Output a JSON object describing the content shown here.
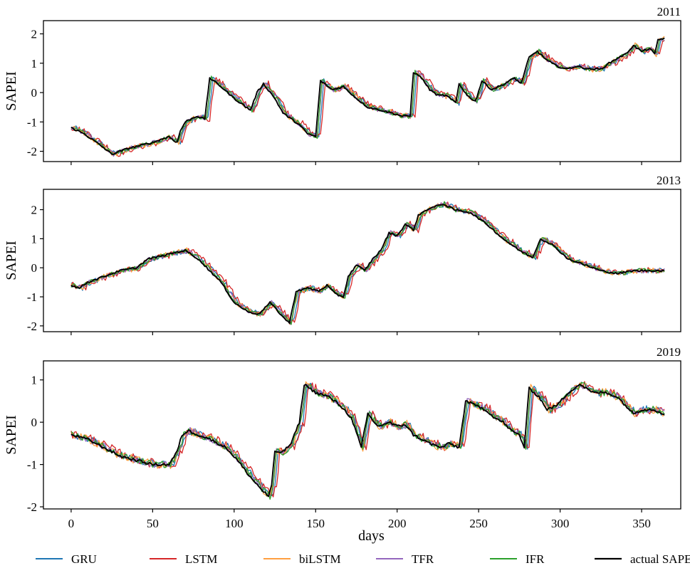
{
  "chart_data": {
    "type": "line",
    "panels": [
      {
        "title": "2011",
        "ylabel": "SAPEI",
        "ylim": [
          -2.35,
          2.45
        ],
        "yticks": [
          -2,
          -1,
          0,
          1,
          2
        ],
        "show_x_tick_labels": false,
        "actual": [
          [
            0,
            -1.2
          ],
          [
            8,
            -1.4
          ],
          [
            18,
            -1.8
          ],
          [
            25,
            -2.1
          ],
          [
            35,
            -1.9
          ],
          [
            50,
            -1.7
          ],
          [
            60,
            -1.5
          ],
          [
            65,
            -1.7
          ],
          [
            67,
            -1.3
          ],
          [
            70,
            -1.0
          ],
          [
            77,
            -0.8
          ],
          [
            82,
            -0.9
          ],
          [
            85,
            0.5
          ],
          [
            92,
            0.2
          ],
          [
            100,
            -0.2
          ],
          [
            105,
            -0.4
          ],
          [
            110,
            -0.6
          ],
          [
            114,
            0.0
          ],
          [
            118,
            0.3
          ],
          [
            125,
            -0.2
          ],
          [
            130,
            -0.7
          ],
          [
            140,
            -1.1
          ],
          [
            145,
            -1.4
          ],
          [
            150,
            -1.5
          ],
          [
            153,
            0.4
          ],
          [
            160,
            0.1
          ],
          [
            167,
            0.2
          ],
          [
            175,
            -0.2
          ],
          [
            182,
            -0.5
          ],
          [
            190,
            -0.6
          ],
          [
            197,
            -0.7
          ],
          [
            203,
            -0.8
          ],
          [
            208,
            -0.8
          ],
          [
            210,
            0.7
          ],
          [
            215,
            0.5
          ],
          [
            220,
            0.1
          ],
          [
            225,
            -0.1
          ],
          [
            230,
            -0.1
          ],
          [
            236,
            -0.35
          ],
          [
            238,
            0.3
          ],
          [
            243,
            -0.1
          ],
          [
            248,
            -0.3
          ],
          [
            252,
            0.4
          ],
          [
            258,
            0.1
          ],
          [
            266,
            0.3
          ],
          [
            272,
            0.5
          ],
          [
            276,
            0.3
          ],
          [
            281,
            1.2
          ],
          [
            286,
            1.4
          ],
          [
            292,
            1.1
          ],
          [
            298,
            0.9
          ],
          [
            304,
            0.8
          ],
          [
            310,
            0.9
          ],
          [
            318,
            0.8
          ],
          [
            325,
            0.8
          ],
          [
            330,
            1.0
          ],
          [
            336,
            1.2
          ],
          [
            340,
            1.3
          ],
          [
            345,
            1.6
          ],
          [
            350,
            1.4
          ],
          [
            355,
            1.5
          ],
          [
            358,
            1.3
          ],
          [
            360,
            1.8
          ],
          [
            364,
            1.85
          ]
        ]
      },
      {
        "title": "2013",
        "ylabel": "SAPEI",
        "ylim": [
          -2.2,
          2.7
        ],
        "yticks": [
          -2,
          -1,
          0,
          1,
          2
        ],
        "show_x_tick_labels": false,
        "actual": [
          [
            0,
            -0.6
          ],
          [
            5,
            -0.7
          ],
          [
            10,
            -0.5
          ],
          [
            20,
            -0.3
          ],
          [
            30,
            -0.1
          ],
          [
            40,
            0.0
          ],
          [
            47,
            0.3
          ],
          [
            55,
            0.4
          ],
          [
            62,
            0.5
          ],
          [
            70,
            0.6
          ],
          [
            78,
            0.3
          ],
          [
            85,
            -0.1
          ],
          [
            92,
            -0.5
          ],
          [
            100,
            -1.2
          ],
          [
            108,
            -1.5
          ],
          [
            115,
            -1.6
          ],
          [
            122,
            -1.2
          ],
          [
            127,
            -1.5
          ],
          [
            130,
            -1.7
          ],
          [
            134,
            -1.9
          ],
          [
            138,
            -0.8
          ],
          [
            145,
            -0.7
          ],
          [
            152,
            -0.8
          ],
          [
            157,
            -0.6
          ],
          [
            162,
            -0.9
          ],
          [
            167,
            -1.0
          ],
          [
            170,
            -0.3
          ],
          [
            175,
            0.1
          ],
          [
            180,
            -0.1
          ],
          [
            185,
            0.3
          ],
          [
            190,
            0.6
          ],
          [
            195,
            1.2
          ],
          [
            200,
            1.1
          ],
          [
            205,
            1.5
          ],
          [
            210,
            1.3
          ],
          [
            213,
            1.8
          ],
          [
            218,
            2.0
          ],
          [
            223,
            2.1
          ],
          [
            228,
            2.2
          ],
          [
            235,
            2.0
          ],
          [
            245,
            1.9
          ],
          [
            255,
            1.5
          ],
          [
            265,
            1.0
          ],
          [
            275,
            0.6
          ],
          [
            283,
            0.35
          ],
          [
            288,
            1.0
          ],
          [
            295,
            0.8
          ],
          [
            305,
            0.3
          ],
          [
            315,
            0.1
          ],
          [
            325,
            -0.1
          ],
          [
            335,
            -0.2
          ],
          [
            345,
            -0.1
          ],
          [
            355,
            -0.1
          ],
          [
            364,
            -0.1
          ]
        ]
      },
      {
        "title": "2019",
        "ylabel": "SAPEI",
        "ylim": [
          -2.05,
          1.45
        ],
        "yticks": [
          -2,
          -1,
          0,
          1
        ],
        "show_x_tick_labels": true,
        "actual": [
          [
            0,
            -0.3
          ],
          [
            10,
            -0.4
          ],
          [
            20,
            -0.6
          ],
          [
            30,
            -0.8
          ],
          [
            40,
            -0.9
          ],
          [
            50,
            -1.0
          ],
          [
            60,
            -1.0
          ],
          [
            65,
            -0.7
          ],
          [
            68,
            -0.3
          ],
          [
            72,
            -0.2
          ],
          [
            78,
            -0.3
          ],
          [
            85,
            -0.4
          ],
          [
            95,
            -0.6
          ],
          [
            102,
            -0.9
          ],
          [
            110,
            -1.3
          ],
          [
            117,
            -1.6
          ],
          [
            121,
            -1.75
          ],
          [
            123,
            -1.5
          ],
          [
            125,
            -0.7
          ],
          [
            130,
            -0.7
          ],
          [
            135,
            -0.5
          ],
          [
            140,
            0.0
          ],
          [
            143,
            0.9
          ],
          [
            150,
            0.7
          ],
          [
            158,
            0.6
          ],
          [
            165,
            0.4
          ],
          [
            172,
            0.1
          ],
          [
            178,
            -0.6
          ],
          [
            182,
            0.2
          ],
          [
            188,
            -0.1
          ],
          [
            195,
            0.0
          ],
          [
            200,
            -0.1
          ],
          [
            205,
            -0.05
          ],
          [
            210,
            -0.3
          ],
          [
            215,
            -0.4
          ],
          [
            220,
            -0.5
          ],
          [
            227,
            -0.6
          ],
          [
            232,
            -0.5
          ],
          [
            238,
            -0.6
          ],
          [
            242,
            0.5
          ],
          [
            248,
            0.4
          ],
          [
            254,
            0.3
          ],
          [
            260,
            0.1
          ],
          [
            265,
            0.0
          ],
          [
            270,
            -0.2
          ],
          [
            275,
            -0.3
          ],
          [
            278,
            -0.6
          ],
          [
            281,
            0.8
          ],
          [
            287,
            0.6
          ],
          [
            292,
            0.3
          ],
          [
            298,
            0.4
          ],
          [
            305,
            0.7
          ],
          [
            312,
            0.9
          ],
          [
            320,
            0.7
          ],
          [
            328,
            0.7
          ],
          [
            335,
            0.6
          ],
          [
            340,
            0.4
          ],
          [
            345,
            0.2
          ],
          [
            350,
            0.3
          ],
          [
            357,
            0.3
          ],
          [
            364,
            0.2
          ]
        ]
      }
    ],
    "xlabel": "days",
    "xlim": [
      -17,
      374
    ],
    "xticks": [
      0,
      50,
      100,
      150,
      200,
      250,
      300,
      350
    ],
    "series": [
      {
        "name": "GRU",
        "color": "#1f77b4"
      },
      {
        "name": "LSTM",
        "color": "#d62728"
      },
      {
        "name": "biLSTM",
        "color": "#ff9f40"
      },
      {
        "name": "TFR",
        "color": "#9467bd"
      },
      {
        "name": "IFR",
        "color": "#2ca02c"
      },
      {
        "name": "actual SAPEI",
        "color": "#000000"
      }
    ]
  }
}
